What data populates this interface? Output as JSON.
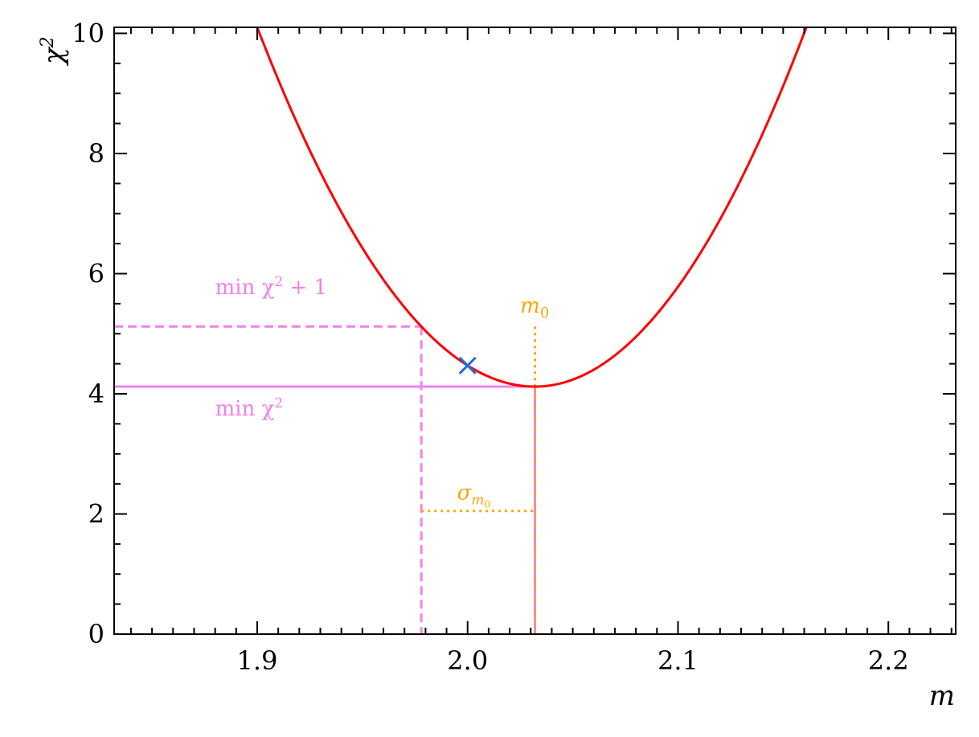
{
  "chart_data": {
    "type": "line",
    "xlabel": "m",
    "ylabel": "χ",
    "ylabel_sup": "2",
    "xlim": [
      1.832,
      2.232
    ],
    "ylim": [
      0,
      10.1
    ],
    "x_ticks": [
      1.9,
      2.0,
      2.1,
      2.2
    ],
    "x_tick_labels": [
      "1.9",
      "2.0",
      "2.1",
      "2.2"
    ],
    "y_ticks": [
      0,
      2,
      4,
      6,
      8,
      10
    ],
    "y_tick_labels": [
      "0",
      "2",
      "4",
      "6",
      "8",
      "10"
    ],
    "grid": false,
    "series": [
      {
        "style": "solid",
        "color": "#ff0000",
        "curve": "parabola",
        "x_min": 2.032,
        "y_min": 4.12,
        "x_range": [
          1.9,
          2.161
        ]
      }
    ],
    "marker": {
      "symbol": "x",
      "x": 2.0,
      "y": 4.47,
      "color": "#1f6fd6"
    },
    "min_chi2": 4.12,
    "min_chi2_plus_1": 5.12,
    "m0": 2.032,
    "m_lower": 1.978,
    "sigma_level": 2.05,
    "annotations": {
      "min_chi2_plus_1": {
        "prefix": "min χ",
        "sup": "2",
        "suffix": " + 1",
        "x": 1.88,
        "y": 5.66,
        "color": "#ee82ee"
      },
      "min_chi2": {
        "prefix": "min χ",
        "sup": "2",
        "x": 1.88,
        "y": 3.64,
        "color": "#ee82ee"
      },
      "m0": {
        "base": "m",
        "sub": "0",
        "x": 2.025,
        "y": 5.35,
        "color": "#ffa500"
      },
      "sigma": {
        "base": "σ",
        "sub": "m",
        "subsub": "0",
        "x": 1.995,
        "y": 2.24,
        "color": "#ffa500"
      }
    },
    "colors": {
      "curve": "#ff0000",
      "violet": "#ee82ee",
      "orange": "#ffa500",
      "marker": "#1f6fd6"
    }
  }
}
